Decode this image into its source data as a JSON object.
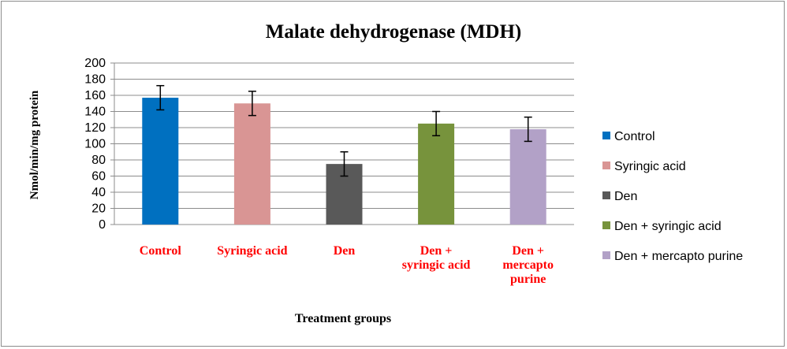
{
  "chart_data": {
    "type": "bar",
    "title": "Malate dehydrogenase (MDH)",
    "xlabel": "Treatment groups",
    "ylabel": "Nmol/min/mg protein",
    "ylim": [
      0,
      200
    ],
    "ytick_step": 20,
    "yticks": [
      "0",
      "20",
      "40",
      "60",
      "80",
      "100",
      "120",
      "140",
      "160",
      "180",
      "200"
    ],
    "grid": true,
    "legend_position": "right",
    "categories": [
      "Control",
      "Syringic acid",
      "Den",
      "Den + syringic acid",
      "Den + mercapto purine"
    ],
    "category_labels": [
      [
        "Control"
      ],
      [
        "Syringic acid"
      ],
      [
        "Den"
      ],
      [
        "Den +",
        "syringic acid"
      ],
      [
        "Den +",
        "mercapto",
        "purine"
      ]
    ],
    "values": [
      157,
      150,
      75,
      125,
      118
    ],
    "errors": [
      15,
      15,
      15,
      15,
      15
    ],
    "colors": [
      "#0070c0",
      "#d99594",
      "#595959",
      "#77933c",
      "#b2a1c7"
    ],
    "tick_label_color": "#ff0000",
    "legend": [
      "Control",
      "Syringic acid",
      "Den",
      "Den + syringic acid",
      "Den + mercapto purine"
    ]
  }
}
